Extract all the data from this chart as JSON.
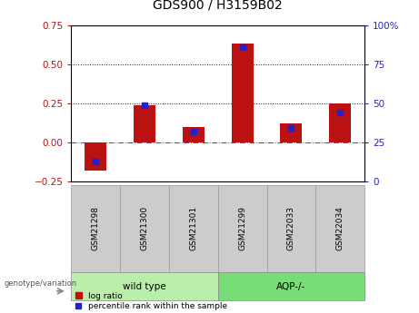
{
  "title": "GDS900 / H3159B02",
  "categories": [
    "GSM21298",
    "GSM21300",
    "GSM21301",
    "GSM21299",
    "GSM22033",
    "GSM22034"
  ],
  "log_ratio": [
    -0.18,
    0.24,
    0.1,
    0.63,
    0.12,
    0.25
  ],
  "percentile_rank": [
    13,
    49,
    32,
    86,
    34,
    44
  ],
  "bar_color": "#bb1111",
  "scatter_color": "#2222cc",
  "left_ylim": [
    -0.25,
    0.75
  ],
  "right_ylim": [
    0,
    100
  ],
  "left_yticks": [
    -0.25,
    0.0,
    0.25,
    0.5,
    0.75
  ],
  "right_yticks": [
    0,
    25,
    50,
    75,
    100
  ],
  "hlines_y": [
    0.0,
    0.25,
    0.5
  ],
  "hline_styles": [
    "dashdot",
    "dotted",
    "dotted"
  ],
  "hline_colors": [
    "#cc2222",
    "#111111",
    "#111111"
  ],
  "wild_type_label": "wild type",
  "aqp_label": "AQP-/-",
  "group_label": "genotype/variation",
  "legend_log_ratio": "log ratio",
  "legend_percentile": "percentile rank within the sample",
  "sample_box_color": "#cccccc",
  "wt_group_color": "#bbeeaa",
  "aqp_group_color": "#77dd77",
  "title_fontsize": 10,
  "tick_fontsize": 7.5,
  "group_fontsize": 7.5,
  "legend_fontsize": 6.5,
  "label_fontsize": 7,
  "cat_fontsize": 6.5
}
